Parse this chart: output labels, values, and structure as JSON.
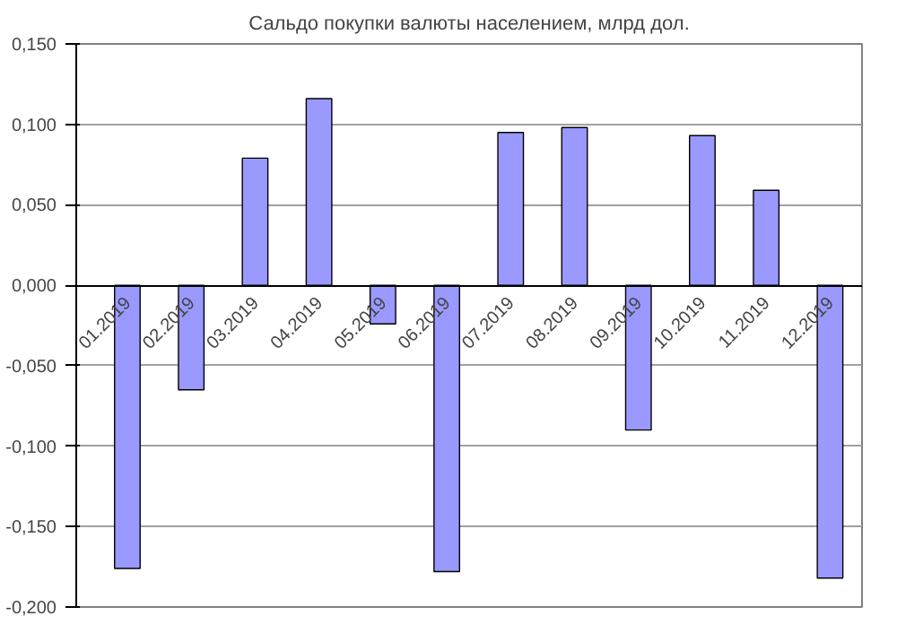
{
  "chart_data": {
    "type": "bar",
    "title": "Сальдо покупки валюты населением, млрд дол.",
    "categories": [
      "01.2019",
      "02.2019",
      "03.2019",
      "04.2019",
      "05.2019",
      "06.2019",
      "07.2019",
      "08.2019",
      "09.2019",
      "10.2019",
      "11.2019",
      "12.2019"
    ],
    "values": [
      -0.176,
      -0.065,
      0.079,
      0.116,
      -0.024,
      -0.178,
      0.095,
      0.098,
      -0.09,
      0.093,
      0.059,
      -0.182
    ],
    "color": "#9999ff",
    "ylim": [
      -0.2,
      0.15
    ],
    "yticks": [
      {
        "value": -0.2,
        "label": "-0,200"
      },
      {
        "value": -0.15,
        "label": "-0,150"
      },
      {
        "value": -0.1,
        "label": "-0,100"
      },
      {
        "value": -0.05,
        "label": "-0,050"
      },
      {
        "value": 0,
        "label": "0,000"
      },
      {
        "value": 0.05,
        "label": "0,050"
      },
      {
        "value": 0.1,
        "label": "0,100"
      },
      {
        "value": 0.15,
        "label": "0,150"
      }
    ],
    "grid": "y"
  }
}
